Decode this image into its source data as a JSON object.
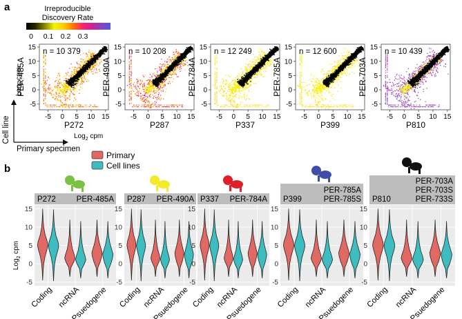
{
  "panel_a": {
    "label": "a",
    "colorbar": {
      "title_line1": "Irreproducible",
      "title_line2": "Discovery Rate",
      "ticks": [
        "0",
        "0.1",
        "0.2",
        "0.3"
      ],
      "colors": [
        "#000000",
        "#2a2a00",
        "#8a8a00",
        "#f5f500",
        "#ffcc00",
        "#ff7700",
        "#ff2266",
        "#cc2299",
        "#8844bb",
        "#5555dd"
      ]
    },
    "x_axis_label": "Log",
    "x_axis_sub": "2",
    "x_axis_unit": " cpm",
    "y_axis_label": "Log",
    "y_axis_sub": "2",
    "y_axis_unit": " cpm",
    "arrow_y_label": "Cell line",
    "arrow_x_label": "Primary specimen",
    "x_ticks": [
      "-5",
      "0",
      "5",
      "10",
      "15"
    ],
    "y_ticks": [
      "15",
      "10",
      "5",
      "0",
      "-5"
    ],
    "scatter_panels": [
      {
        "cell_line": "PER-485A",
        "primary": "P272",
        "n_label": "n = 10 379",
        "color_bias": "orange"
      },
      {
        "cell_line": "PER-490A",
        "primary": "P287",
        "n_label": "n = 10 208",
        "color_bias": "red"
      },
      {
        "cell_line": "PER-784A",
        "primary": "P337",
        "n_label": "n = 12 249",
        "color_bias": "yellow"
      },
      {
        "cell_line": "PER-785A",
        "primary": "P399",
        "n_label": "n = 12 600",
        "color_bias": "yellow"
      },
      {
        "cell_line": "PER-703A",
        "primary": "P810",
        "n_label": "n = 10 439",
        "color_bias": "purple"
      }
    ]
  },
  "panel_b": {
    "label": "b",
    "legend": [
      {
        "name": "Primary",
        "color": "#e06a63"
      },
      {
        "name": "Cell lines",
        "color": "#3fbcbf"
      }
    ],
    "y_axis_label": "Log",
    "y_axis_sub": "2",
    "y_axis_unit": " cpm",
    "y_ticks": [
      "15",
      "10",
      "5",
      "0",
      "-5"
    ],
    "categories": [
      "Coding",
      "ncRNA",
      "Psuedogene"
    ],
    "violin_panels": [
      {
        "primary": "P272",
        "cell_lines": [
          "PER-485A"
        ],
        "icon_color": "#7ac143"
      },
      {
        "primary": "P287",
        "cell_lines": [
          "PER-490A"
        ],
        "icon_color": "#f2ea2a"
      },
      {
        "primary": "P337",
        "cell_lines": [
          "PER-784A"
        ],
        "icon_color": "#e02028"
      },
      {
        "primary": "P399",
        "cell_lines": [
          "PER-785A",
          "PER-785S"
        ],
        "icon_color": "#3f4fa8"
      },
      {
        "primary": "P810",
        "cell_lines": [
          "PER-703A",
          "PER-703S",
          "PER-733S"
        ],
        "icon_color": "#111111"
      }
    ]
  }
}
